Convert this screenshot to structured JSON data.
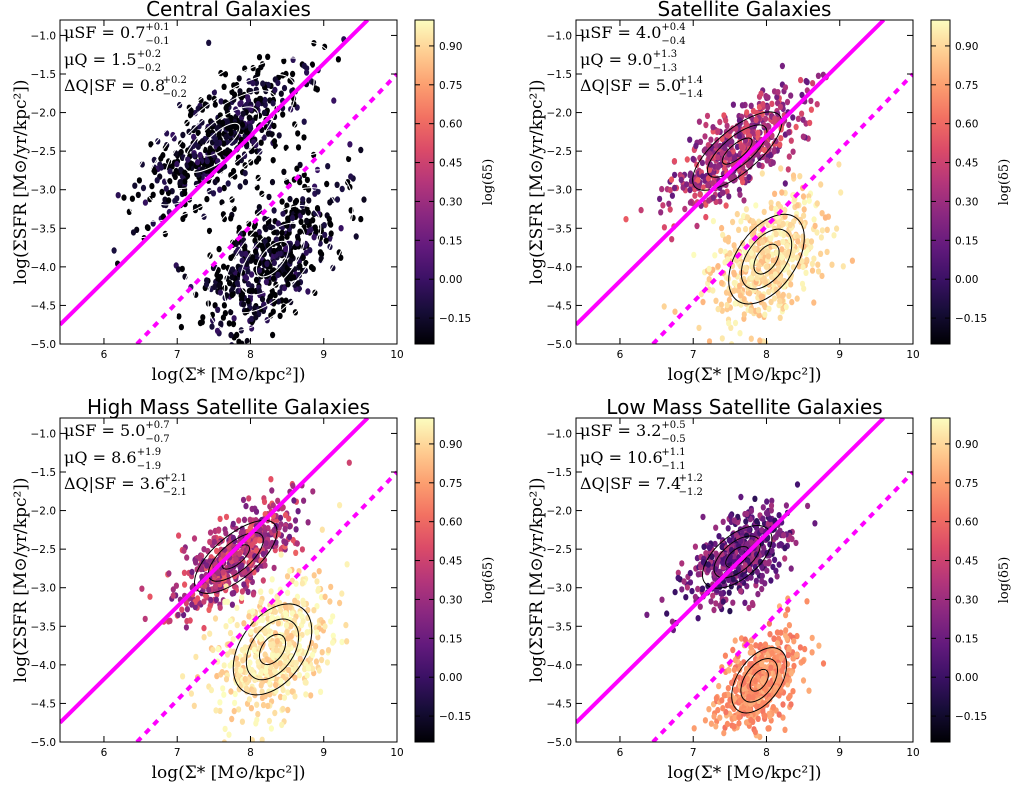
{
  "chart_data": [
    {
      "type": "scatter",
      "variant": "hexbin+contours",
      "title": "Central Galaxies",
      "xlabel": "log(Σ* [M⊙/kpc²])",
      "ylabel": "log(ΣSFR [M⊙/yr/kpc²])",
      "xlim": [
        5.4,
        10.0
      ],
      "ylim": [
        -5.0,
        -0.8
      ],
      "xticks": [
        "6",
        "7",
        "8",
        "9",
        "10"
      ],
      "yticks": [
        "-1.0",
        "-1.5",
        "-2.0",
        "-2.5",
        "-3.0",
        "-3.5",
        "-4.0",
        "-4.5",
        "-5.0"
      ],
      "colorbar": {
        "label": "log(δ5)",
        "range": [
          -0.25,
          1.0
        ],
        "ticks": [
          "0.90",
          "0.75",
          "0.60",
          "0.45",
          "0.30",
          "0.15",
          "0.00",
          "-0.15"
        ]
      },
      "point_color_level": 0.02,
      "contour_color": "#ffffff",
      "annotations": {
        "mu_sf": {
          "label": "μSF",
          "value": "0.7",
          "plus": "+0.1",
          "minus": "−0.1"
        },
        "mu_q": {
          "label": "μQ",
          "value": "1.5",
          "plus": "+0.2",
          "minus": "−0.2"
        },
        "delta": {
          "label": "ΔQ|SF",
          "value": "0.8",
          "plus": "+0.2",
          "minus": "−0.2"
        }
      },
      "lines": [
        {
          "style": "solid",
          "color": "#ff00ff",
          "points": [
            [
              5.4,
              -4.75
            ],
            [
              9.6,
              -0.8
            ]
          ]
        },
        {
          "style": "dashed",
          "color": "#ff00ff",
          "points": [
            [
              6.45,
              -5.0
            ],
            [
              10.0,
              -1.5
            ]
          ]
        }
      ],
      "clouds": [
        {
          "name": "star-forming",
          "center": [
            7.6,
            -2.35
          ],
          "spread": [
            0.75,
            0.5
          ],
          "angle_deg": 40
        },
        {
          "name": "quiescent",
          "center": [
            8.3,
            -3.9
          ],
          "spread": [
            0.7,
            0.6
          ],
          "angle_deg": 50
        }
      ]
    },
    {
      "type": "scatter",
      "variant": "hexbin+contours",
      "title": "Satellite Galaxies",
      "xlabel": "log(Σ* [M⊙/kpc²])",
      "ylabel": "log(ΣSFR [M⊙/yr/kpc²])",
      "xlim": [
        5.4,
        10.0
      ],
      "ylim": [
        -5.0,
        -0.8
      ],
      "xticks": [
        "6",
        "7",
        "8",
        "9",
        "10"
      ],
      "yticks": [
        "-1.0",
        "-1.5",
        "-2.0",
        "-2.5",
        "-3.0",
        "-3.5",
        "-4.0",
        "-4.5",
        "-5.0"
      ],
      "colorbar": {
        "label": "log(δ5)",
        "range": [
          -0.25,
          1.0
        ],
        "ticks": [
          "0.90",
          "0.75",
          "0.60",
          "0.45",
          "0.30",
          "0.15",
          "0.00",
          "-0.15"
        ]
      },
      "point_color_level": 0.7,
      "contour_color": "#000000",
      "annotations": {
        "mu_sf": {
          "label": "μSF",
          "value": "4.0",
          "plus": "+0.4",
          "minus": "−0.4"
        },
        "mu_q": {
          "label": "μQ",
          "value": "9.0",
          "plus": "+1.3",
          "minus": "−1.3"
        },
        "delta": {
          "label": "ΔQ|SF",
          "value": "5.0",
          "plus": "+1.4",
          "minus": "−1.4"
        }
      },
      "lines": [
        {
          "style": "solid",
          "color": "#ff00ff",
          "points": [
            [
              5.4,
              -4.75
            ],
            [
              9.6,
              -0.8
            ]
          ]
        },
        {
          "style": "dashed",
          "color": "#ff00ff",
          "points": [
            [
              6.45,
              -5.0
            ],
            [
              10.0,
              -1.5
            ]
          ]
        }
      ],
      "clouds": [
        {
          "name": "star-forming",
          "center": [
            7.6,
            -2.5
          ],
          "spread": [
            0.6,
            0.4
          ],
          "angle_deg": 40
        },
        {
          "name": "quiescent",
          "center": [
            8.0,
            -3.9
          ],
          "spread": [
            0.55,
            0.55
          ],
          "angle_deg": 55
        }
      ]
    },
    {
      "type": "scatter",
      "variant": "hexbin+contours",
      "title": "High Mass Satellite Galaxies",
      "xlabel": "log(Σ* [M⊙/kpc²])",
      "ylabel": "log(ΣSFR [M⊙/yr/kpc²])",
      "xlim": [
        5.4,
        10.0
      ],
      "ylim": [
        -5.0,
        -0.8
      ],
      "xticks": [
        "6",
        "7",
        "8",
        "9",
        "10"
      ],
      "yticks": [
        "-1.0",
        "-1.5",
        "-2.0",
        "-2.5",
        "-3.0",
        "-3.5",
        "-4.0",
        "-4.5",
        "-5.0"
      ],
      "colorbar": {
        "label": "log(δ5)",
        "range": [
          -0.25,
          1.0
        ],
        "ticks": [
          "0.90",
          "0.75",
          "0.60",
          "0.45",
          "0.30",
          "0.15",
          "0.00",
          "-0.15"
        ]
      },
      "point_color_level": 0.72,
      "contour_color": "#000000",
      "annotations": {
        "mu_sf": {
          "label": "μSF",
          "value": "5.0",
          "plus": "+0.7",
          "minus": "−0.7"
        },
        "mu_q": {
          "label": "μQ",
          "value": "8.6",
          "plus": "+1.9",
          "minus": "−1.9"
        },
        "delta": {
          "label": "ΔQ|SF",
          "value": "3.6",
          "plus": "+2.1",
          "minus": "−2.1"
        }
      },
      "lines": [
        {
          "style": "solid",
          "color": "#ff00ff",
          "points": [
            [
              5.4,
              -4.75
            ],
            [
              9.6,
              -0.8
            ]
          ]
        },
        {
          "style": "dashed",
          "color": "#ff00ff",
          "points": [
            [
              6.45,
              -5.0
            ],
            [
              10.0,
              -1.5
            ]
          ]
        }
      ],
      "clouds": [
        {
          "name": "star-forming",
          "center": [
            7.8,
            -2.6
          ],
          "spread": [
            0.55,
            0.4
          ],
          "angle_deg": 40
        },
        {
          "name": "quiescent",
          "center": [
            8.3,
            -3.8
          ],
          "spread": [
            0.55,
            0.6
          ],
          "angle_deg": 55
        }
      ]
    },
    {
      "type": "scatter",
      "variant": "hexbin+contours",
      "title": "Low Mass Satellite Galaxies",
      "xlabel": "log(Σ* [M⊙/kpc²])",
      "ylabel": "log(ΣSFR [M⊙/yr/kpc²])",
      "xlim": [
        5.4,
        10.0
      ],
      "ylim": [
        -5.0,
        -0.8
      ],
      "xticks": [
        "6",
        "7",
        "8",
        "9",
        "10"
      ],
      "yticks": [
        "-1.0",
        "-1.5",
        "-2.0",
        "-2.5",
        "-3.0",
        "-3.5",
        "-4.0",
        "-4.5",
        "-5.0"
      ],
      "colorbar": {
        "label": "log(δ5)",
        "range": [
          -0.25,
          1.0
        ],
        "ticks": [
          "0.90",
          "0.75",
          "0.60",
          "0.45",
          "0.30",
          "0.15",
          "0.00",
          "-0.15"
        ]
      },
      "point_color_level": 0.55,
      "contour_color": "#000000",
      "annotations": {
        "mu_sf": {
          "label": "μSF",
          "value": "3.2",
          "plus": "+0.5",
          "minus": "−0.5"
        },
        "mu_q": {
          "label": "μQ",
          "value": "10.6",
          "plus": "+1.1",
          "minus": "−1.1"
        },
        "delta": {
          "label": "ΔQ|SF",
          "value": "7.4",
          "plus": "+1.2",
          "minus": "−1.2"
        }
      },
      "lines": [
        {
          "style": "solid",
          "color": "#ff00ff",
          "points": [
            [
              5.4,
              -4.75
            ],
            [
              9.6,
              -0.8
            ]
          ]
        },
        {
          "style": "dashed",
          "color": "#ff00ff",
          "points": [
            [
              6.45,
              -5.0
            ],
            [
              10.0,
              -1.5
            ]
          ]
        }
      ],
      "clouds": [
        {
          "name": "star-forming",
          "center": [
            7.6,
            -2.6
          ],
          "spread": [
            0.45,
            0.4
          ],
          "angle_deg": 40
        },
        {
          "name": "quiescent",
          "center": [
            7.9,
            -4.2
          ],
          "spread": [
            0.4,
            0.4
          ],
          "angle_deg": 55
        }
      ]
    }
  ]
}
